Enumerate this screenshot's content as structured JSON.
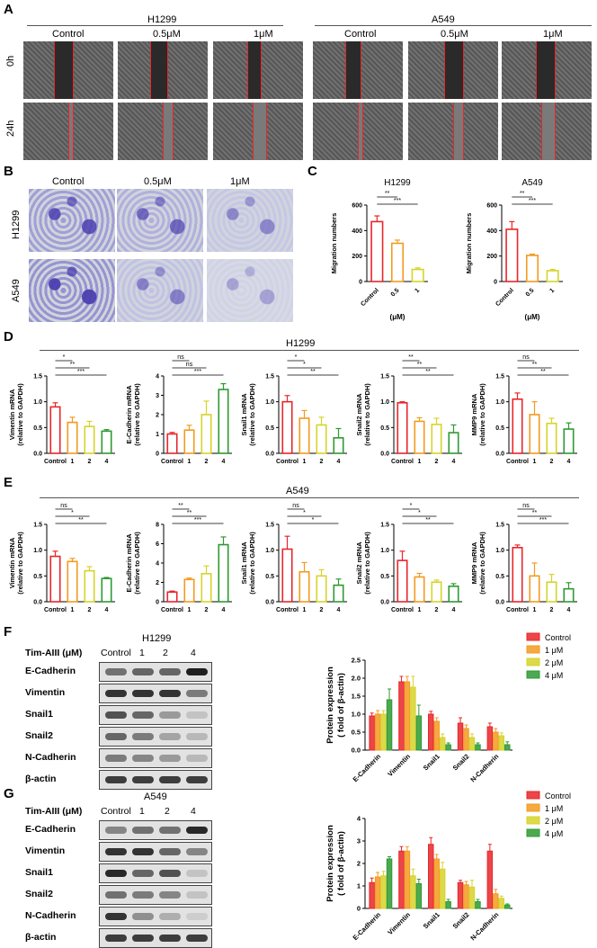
{
  "panels": [
    "A",
    "B",
    "C",
    "D",
    "E",
    "F",
    "G"
  ],
  "panel_a": {
    "groups": [
      "H1299",
      "A549"
    ],
    "columns": [
      "Control",
      "0.5μM",
      "1μM"
    ],
    "rows": [
      "0h",
      "24h"
    ]
  },
  "panel_b": {
    "columns": [
      "Control",
      "0.5μM",
      "1μM"
    ],
    "rows": [
      "H1299",
      "A549"
    ]
  },
  "panel_c": {
    "unit": "(μM)"
  },
  "panel_d": {
    "header": "H1299"
  },
  "panel_e": {
    "header": "A549"
  },
  "panel_f": {
    "title": "H1299",
    "treatment_label": "Tim-AIII (μM)",
    "lanes": [
      "Control",
      "1",
      "2",
      "4"
    ],
    "bands": [
      "E-Cadherin",
      "Vimentin",
      "Snail1",
      "Snail2",
      "N-Cadherin",
      "β-actin"
    ]
  },
  "panel_g": {
    "title": "A549",
    "treatment_label": "Tim-AIII (μM)",
    "lanes": [
      "Control",
      "1",
      "2",
      "4"
    ],
    "bands": [
      "E-Cadherin",
      "Vimentin",
      "Snail1",
      "Snail2",
      "N-Cadherin",
      "β-actin"
    ]
  },
  "colors": {
    "c0": "#e8262a",
    "c1": "#f39a1f",
    "c2": "#d6d42a",
    "c3": "#2e9a32",
    "crystal": "#4b3fb0",
    "redline": "#e8262a"
  },
  "chart_data": [
    {
      "id": "C-H1299",
      "type": "bar",
      "title": "H1299",
      "categories": [
        "Control",
        "0.5",
        "1"
      ],
      "values": [
        470,
        300,
        95
      ],
      "errors": [
        45,
        25,
        12
      ],
      "ylabel": "Migration numbers",
      "xlabel": "(μM)",
      "ylim": [
        0,
        600
      ],
      "yticks": [
        "0",
        "200",
        "400",
        "600"
      ],
      "sig": [
        "**",
        "***"
      ]
    },
    {
      "id": "C-A549",
      "type": "bar",
      "title": "A549",
      "categories": [
        "Control",
        "0.5",
        "1"
      ],
      "values": [
        410,
        205,
        85
      ],
      "errors": [
        60,
        10,
        10
      ],
      "ylabel": "Migration numbers",
      "xlabel": "(μM)",
      "ylim": [
        0,
        600
      ],
      "yticks": [
        "0",
        "200",
        "400",
        "600"
      ],
      "sig": [
        "**",
        "***"
      ]
    },
    {
      "id": "D1",
      "type": "bar",
      "categories": [
        "Control",
        "1",
        "2",
        "4"
      ],
      "values": [
        0.9,
        0.6,
        0.52,
        0.43
      ],
      "errors": [
        0.08,
        0.1,
        0.1,
        0.03
      ],
      "ylabel": "Vimentin mRNA",
      "ylabel2": "(relative to GAPDH)",
      "ylim": [
        0,
        1.5
      ],
      "yticks": [
        "0.0",
        "0.5",
        "1.0",
        "1.5"
      ],
      "sig": [
        "*",
        "**",
        "***"
      ]
    },
    {
      "id": "D2",
      "type": "bar",
      "categories": [
        "Control",
        "1",
        "2",
        "4"
      ],
      "values": [
        1.0,
        1.2,
        2.0,
        3.3
      ],
      "errors": [
        0.08,
        0.25,
        0.7,
        0.3
      ],
      "ylabel": "E-Cadherin mRNA",
      "ylabel2": "(relative to GAPDH)",
      "ylim": [
        0,
        4
      ],
      "yticks": [
        "0",
        "1",
        "2",
        "3",
        "4"
      ],
      "sig": [
        "ns",
        "ns",
        "***"
      ]
    },
    {
      "id": "D3",
      "type": "bar",
      "categories": [
        "Control",
        "1",
        "2",
        "4"
      ],
      "values": [
        1.0,
        0.68,
        0.55,
        0.3
      ],
      "errors": [
        0.12,
        0.15,
        0.15,
        0.18
      ],
      "ylabel": "Snail1 mRNA",
      "ylabel2": "(relative to GAPDH)",
      "ylim": [
        0,
        1.5
      ],
      "yticks": [
        "0.0",
        "0.5",
        "1.0",
        "1.5"
      ],
      "sig": [
        "*",
        "*",
        "**"
      ]
    },
    {
      "id": "D4",
      "type": "bar",
      "categories": [
        "Control",
        "1",
        "2",
        "4"
      ],
      "values": [
        0.98,
        0.62,
        0.56,
        0.4
      ],
      "errors": [
        0.02,
        0.07,
        0.12,
        0.15
      ],
      "ylabel": "Snail2 mRNA",
      "ylabel2": "(relative to GAPDH)",
      "ylim": [
        0,
        1.5
      ],
      "yticks": [
        "0.0",
        "0.5",
        "1.0",
        "1.5"
      ],
      "sig": [
        "**",
        "**",
        "**"
      ]
    },
    {
      "id": "D5",
      "type": "bar",
      "categories": [
        "Control",
        "1",
        "2",
        "4"
      ],
      "values": [
        1.05,
        0.75,
        0.58,
        0.47
      ],
      "errors": [
        0.12,
        0.25,
        0.1,
        0.12
      ],
      "ylabel": "MMP9 mRNA",
      "ylabel2": "(relative to GAPDH)",
      "ylim": [
        0,
        1.5
      ],
      "yticks": [
        "0.0",
        "0.5",
        "1.0",
        "1.5"
      ],
      "sig": [
        "ns",
        "**",
        "**"
      ]
    },
    {
      "id": "E1",
      "type": "bar",
      "categories": [
        "Control",
        "1",
        "2",
        "4"
      ],
      "values": [
        0.88,
        0.78,
        0.6,
        0.45
      ],
      "errors": [
        0.1,
        0.06,
        0.08,
        0.02
      ],
      "ylabel": "Vimentin mRNA",
      "ylabel2": "(relative to GAPDH)",
      "ylim": [
        0,
        1.5
      ],
      "yticks": [
        "0.0",
        "0.5",
        "1.0",
        "1.5"
      ],
      "sig": [
        "ns",
        "*",
        "**"
      ]
    },
    {
      "id": "E2",
      "type": "bar",
      "categories": [
        "Control",
        "1",
        "2",
        "4"
      ],
      "values": [
        1.0,
        2.3,
        2.9,
        5.9
      ],
      "errors": [
        0.1,
        0.15,
        0.8,
        0.8
      ],
      "ylabel": "E-Cadherin mRNA",
      "ylabel2": "(relative to GAPDH)",
      "ylim": [
        0,
        8
      ],
      "yticks": [
        "0",
        "2",
        "4",
        "6",
        "8"
      ],
      "sig": [
        "**",
        "**",
        "***"
      ]
    },
    {
      "id": "E3",
      "type": "bar",
      "categories": [
        "Control",
        "1",
        "2",
        "4"
      ],
      "values": [
        1.02,
        0.58,
        0.5,
        0.32
      ],
      "errors": [
        0.25,
        0.18,
        0.12,
        0.12
      ],
      "ylabel": "Snail1 mRNA",
      "ylabel2": "(relative to GAPDH)",
      "ylim": [
        0,
        1.5
      ],
      "yticks": [
        "0.0",
        "0.5",
        "1.0",
        "1.5"
      ],
      "sig": [
        "ns",
        "*",
        "*"
      ]
    },
    {
      "id": "E4",
      "type": "bar",
      "categories": [
        "Control",
        "1",
        "2",
        "4"
      ],
      "values": [
        0.8,
        0.48,
        0.38,
        0.3
      ],
      "errors": [
        0.18,
        0.07,
        0.04,
        0.05
      ],
      "ylabel": "Snail2 mRNA",
      "ylabel2": "(relative to GAPDH)",
      "ylim": [
        0,
        1.5
      ],
      "yticks": [
        "0.0",
        "0.5",
        "1.0",
        "1.5"
      ],
      "sig": [
        "*",
        "*",
        "**"
      ]
    },
    {
      "id": "E5",
      "type": "bar",
      "categories": [
        "Control",
        "1",
        "2",
        "4"
      ],
      "values": [
        1.05,
        0.5,
        0.38,
        0.25
      ],
      "errors": [
        0.05,
        0.25,
        0.15,
        0.12
      ],
      "ylabel": "MMP9 mRNA",
      "ylabel2": "(relative to GAPDH)",
      "ylim": [
        0,
        1.5
      ],
      "yticks": [
        "0.0",
        "0.5",
        "1.0",
        "1.5"
      ],
      "sig": [
        "ns",
        "**",
        "***"
      ]
    },
    {
      "id": "F-chart",
      "type": "bar",
      "categories": [
        "E-Cadherin",
        "Vimentin",
        "Snail1",
        "Snail2",
        "N-Cadherin"
      ],
      "series": [
        {
          "name": "Control",
          "values": [
            0.95,
            1.9,
            1.0,
            0.75,
            0.65
          ],
          "errors": [
            0.08,
            0.15,
            0.08,
            0.15,
            0.1
          ]
        },
        {
          "name": "1 μM",
          "values": [
            1.0,
            1.9,
            0.8,
            0.6,
            0.5
          ],
          "errors": [
            0.1,
            0.15,
            0.1,
            0.1,
            0.1
          ]
        },
        {
          "name": "2 μM",
          "values": [
            1.0,
            1.75,
            0.35,
            0.35,
            0.4
          ],
          "errors": [
            0.1,
            0.3,
            0.1,
            0.1,
            0.08
          ]
        },
        {
          "name": "4 μM",
          "values": [
            1.4,
            0.95,
            0.15,
            0.15,
            0.15
          ],
          "errors": [
            0.3,
            0.3,
            0.05,
            0.05,
            0.08
          ]
        }
      ],
      "ylabel": "Protein expression",
      "ylabel2": "( fold of β-actin)",
      "ylim": [
        0,
        2.5
      ],
      "yticks": [
        "0.0",
        "0.5",
        "1.0",
        "1.5",
        "2.0",
        "2.5"
      ],
      "legend": "top-right"
    },
    {
      "id": "G-chart",
      "type": "bar",
      "categories": [
        "E-Cadherin",
        "Vimentin",
        "Snail1",
        "Snail2",
        "N-Cadherin"
      ],
      "series": [
        {
          "name": "Control",
          "values": [
            1.15,
            2.55,
            2.85,
            1.15,
            2.55
          ],
          "errors": [
            0.2,
            0.2,
            0.3,
            0.1,
            0.3
          ]
        },
        {
          "name": "1 μM",
          "values": [
            1.4,
            2.55,
            2.2,
            1.05,
            0.65
          ],
          "errors": [
            0.2,
            0.2,
            0.2,
            0.15,
            0.2
          ]
        },
        {
          "name": "2 μM",
          "values": [
            1.45,
            1.45,
            1.75,
            0.95,
            0.45
          ],
          "errors": [
            0.2,
            0.3,
            0.3,
            0.3,
            0.1
          ]
        },
        {
          "name": "4 μM",
          "values": [
            2.2,
            1.1,
            0.3,
            0.3,
            0.15
          ],
          "errors": [
            0.1,
            0.2,
            0.1,
            0.1,
            0.05
          ]
        }
      ],
      "ylabel": "Protein expression",
      "ylabel2": "( fold of β-actin)",
      "ylim": [
        0,
        4
      ],
      "yticks": [
        "0",
        "1",
        "2",
        "3",
        "4"
      ],
      "legend": "top-right"
    }
  ]
}
